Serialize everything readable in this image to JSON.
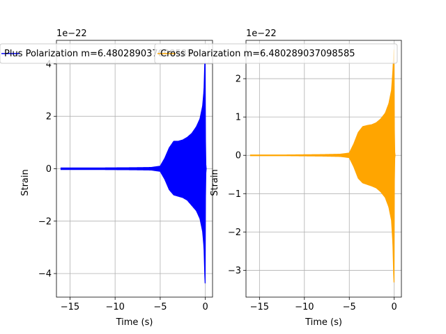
{
  "chart_data": [
    {
      "type": "line",
      "xlabel": "Time (s)",
      "ylabel": "Strain",
      "y_offset_label": "1e−22",
      "y_scale_factor": 1e-22,
      "xlim": [
        -16.5,
        0.8
      ],
      "ylim": [
        -4.9,
        4.9
      ],
      "xticks": [
        -15,
        -10,
        -5,
        0
      ],
      "xtick_labels": [
        "−15",
        "−10",
        "−5",
        "0"
      ],
      "yticks": [
        -4,
        -2,
        0,
        2,
        4
      ],
      "ytick_labels": [
        "−4",
        "−2",
        "0",
        "2",
        "4"
      ],
      "grid": true,
      "legend_placement": "top",
      "series": [
        {
          "name": "Plus Polarization m=6.480289037098585",
          "color": "#0000ff",
          "envelope": {
            "x": [
              -16.0,
              -12.0,
              -8.0,
              -6.0,
              -5.0,
              -4.5,
              -4.0,
              -3.5,
              -3.0,
              -2.5,
              -2.0,
              -1.5,
              -1.0,
              -0.6,
              -0.3,
              -0.15,
              -0.05,
              0.0,
              0.02,
              0.05,
              0.1
            ],
            "upper": [
              0.03,
              0.03,
              0.04,
              0.05,
              0.1,
              0.4,
              0.8,
              1.05,
              1.05,
              1.1,
              1.2,
              1.35,
              1.6,
              1.9,
              2.4,
              3.0,
              4.2,
              4.5,
              1.0,
              0.2,
              0.0
            ],
            "lower": [
              -0.03,
              -0.03,
              -0.04,
              -0.05,
              -0.1,
              -0.4,
              -0.8,
              -1.0,
              -1.05,
              -1.1,
              -1.2,
              -1.4,
              -1.6,
              -1.9,
              -2.4,
              -3.0,
              -4.2,
              -4.5,
              -1.0,
              -0.2,
              0.0
            ]
          }
        }
      ]
    },
    {
      "type": "line",
      "xlabel": "Time (s)",
      "ylabel": "Strain",
      "y_offset_label": "1e−22",
      "y_scale_factor": 1e-22,
      "xlim": [
        -16.5,
        0.8
      ],
      "ylim": [
        -3.7,
        3.0
      ],
      "xticks": [
        -15,
        -10,
        -5,
        0
      ],
      "xtick_labels": [
        "−15",
        "−10",
        "−5",
        "0"
      ],
      "yticks": [
        -3,
        -2,
        -1,
        0,
        1,
        2
      ],
      "ytick_labels": [
        "−3",
        "−2",
        "−1",
        "0",
        "1",
        "2"
      ],
      "grid": true,
      "legend_placement": "top",
      "series": [
        {
          "name": "Cross Polarization m=6.480289037098585",
          "color": "#ffa500",
          "envelope": {
            "x": [
              -16.0,
              -12.0,
              -8.0,
              -6.0,
              -5.0,
              -4.5,
              -4.0,
              -3.5,
              -3.0,
              -2.5,
              -2.0,
              -1.5,
              -1.0,
              -0.6,
              -0.3,
              -0.15,
              -0.05,
              0.0,
              0.02,
              0.05,
              0.1
            ],
            "upper": [
              0.01,
              0.01,
              0.02,
              0.03,
              0.06,
              0.3,
              0.6,
              0.75,
              0.78,
              0.8,
              0.85,
              0.95,
              1.1,
              1.35,
              1.7,
              2.2,
              2.7,
              2.8,
              0.6,
              0.1,
              0.0
            ],
            "lower": [
              -0.01,
              -0.01,
              -0.02,
              -0.03,
              -0.06,
              -0.3,
              -0.6,
              -0.72,
              -0.76,
              -0.8,
              -0.85,
              -0.95,
              -1.1,
              -1.35,
              -1.7,
              -2.3,
              -3.2,
              -3.4,
              -0.6,
              -0.1,
              0.0
            ]
          }
        }
      ]
    }
  ]
}
